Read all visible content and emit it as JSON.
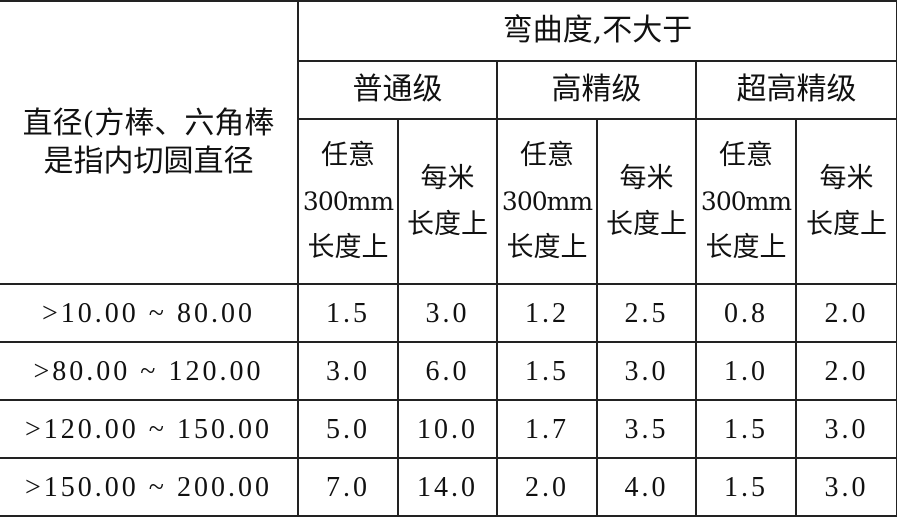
{
  "table": {
    "row_header": [
      "直径(方棒、六角棒",
      "是指内切圆直径"
    ],
    "group_header": "弯曲度,不大于",
    "grades": [
      "普通级",
      "高精级",
      "超高精级"
    ],
    "sub_headers": {
      "any300": [
        "任意",
        "300mm",
        "长度上"
      ],
      "per_meter": [
        "每米",
        "长度上"
      ]
    },
    "rows": [
      {
        "diameter": ">10.00 ~ 80.00",
        "values": [
          "1.5",
          "3.0",
          "1.2",
          "2.5",
          "0.8",
          "2.0"
        ]
      },
      {
        "diameter": ">80.00 ~ 120.00",
        "values": [
          "3.0",
          "6.0",
          "1.5",
          "3.0",
          "1.0",
          "2.0"
        ]
      },
      {
        "diameter": ">120.00 ~ 150.00",
        "values": [
          "5.0",
          "10.0",
          "1.7",
          "3.5",
          "1.5",
          "3.0"
        ]
      },
      {
        "diameter": ">150.00 ~ 200.00",
        "values": [
          "7.0",
          "14.0",
          "2.0",
          "4.0",
          "1.5",
          "3.0"
        ]
      }
    ]
  }
}
